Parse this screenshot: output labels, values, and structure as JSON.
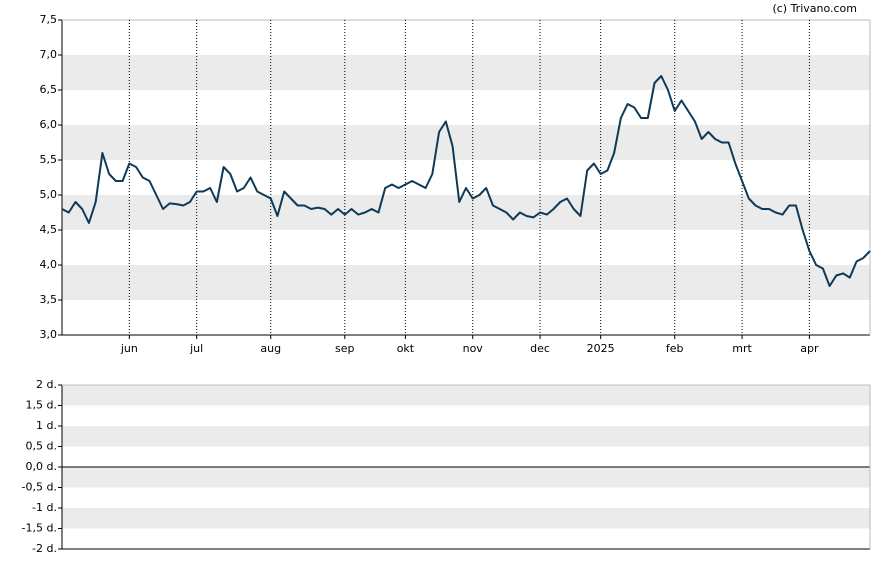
{
  "chart_data": [
    {
      "type": "line",
      "source": "(c) Trivano.com",
      "color": "#0f3a57",
      "grid": true,
      "band_color": "#ebebeb",
      "categories": [
        null,
        null,
        null,
        null,
        null,
        null,
        null,
        null,
        null,
        null,
        "jun",
        null,
        null,
        null,
        null,
        null,
        null,
        null,
        null,
        null,
        "jul",
        null,
        null,
        null,
        null,
        null,
        null,
        null,
        null,
        null,
        null,
        "aug",
        null,
        null,
        null,
        null,
        null,
        null,
        null,
        null,
        null,
        null,
        "sep",
        null,
        null,
        null,
        null,
        null,
        null,
        null,
        null,
        "okt",
        null,
        null,
        null,
        null,
        null,
        null,
        null,
        null,
        null,
        "nov",
        null,
        null,
        null,
        null,
        null,
        null,
        null,
        null,
        null,
        "dec",
        null,
        null,
        null,
        null,
        null,
        null,
        null,
        null,
        "2025",
        null,
        null,
        null,
        null,
        null,
        null,
        null,
        null,
        null,
        null,
        "feb",
        null,
        null,
        null,
        null,
        null,
        null,
        null,
        null,
        null,
        "mrt",
        null,
        null,
        null,
        null,
        null,
        null,
        null,
        null,
        null,
        "apr",
        null,
        null,
        null,
        null,
        null,
        null,
        null,
        null,
        null
      ],
      "values": [
        4.8,
        4.75,
        4.9,
        4.8,
        4.6,
        4.9,
        5.6,
        5.3,
        5.2,
        5.2,
        5.45,
        5.4,
        5.25,
        5.2,
        5.0,
        4.8,
        4.88,
        4.87,
        4.85,
        4.9,
        5.05,
        5.05,
        5.1,
        4.9,
        5.4,
        5.3,
        5.05,
        5.1,
        5.25,
        5.05,
        5.0,
        4.95,
        4.7,
        5.05,
        4.95,
        4.85,
        4.85,
        4.8,
        4.82,
        4.8,
        4.72,
        4.8,
        4.72,
        4.8,
        4.72,
        4.75,
        4.8,
        4.75,
        5.1,
        5.15,
        5.1,
        5.15,
        5.2,
        5.15,
        5.1,
        5.3,
        5.9,
        6.05,
        5.7,
        4.9,
        5.1,
        4.95,
        5.0,
        5.1,
        4.85,
        4.8,
        4.75,
        4.65,
        4.75,
        4.7,
        4.68,
        4.75,
        4.72,
        4.8,
        4.9,
        4.95,
        4.8,
        4.7,
        5.35,
        5.45,
        5.3,
        5.35,
        5.6,
        6.1,
        6.3,
        6.25,
        6.1,
        6.1,
        6.6,
        6.7,
        6.5,
        6.2,
        6.35,
        6.2,
        6.05,
        5.8,
        5.9,
        5.8,
        5.75,
        5.75,
        5.45,
        5.2,
        4.95,
        4.85,
        4.8,
        4.8,
        4.75,
        4.72,
        4.85,
        4.85,
        4.5,
        4.2,
        4.0,
        3.95,
        3.7,
        3.85,
        3.88,
        3.82,
        4.05,
        4.1,
        4.2
      ],
      "ylim": [
        3,
        7.5
      ],
      "yticks": [
        {
          "value": 3,
          "label": "3,0"
        },
        {
          "value": 3.5,
          "label": "3,5"
        },
        {
          "value": 4,
          "label": "4,0"
        },
        {
          "value": 4.5,
          "label": "4,5"
        },
        {
          "value": 5,
          "label": "5,0"
        },
        {
          "value": 5.5,
          "label": "5,5"
        },
        {
          "value": 6,
          "label": "6,0"
        },
        {
          "value": 6.5,
          "label": "6,5"
        },
        {
          "value": 7,
          "label": "7,0"
        },
        {
          "value": 7.5,
          "label": "7,5"
        }
      ]
    },
    {
      "type": "bar",
      "grid": true,
      "band_color": "#ebebeb",
      "zero_line": true,
      "ylim": [
        -2,
        2
      ],
      "yticks": [
        {
          "value": -2,
          "label": "-2 d."
        },
        {
          "value": -1.5,
          "label": "-1,5 d."
        },
        {
          "value": -1,
          "label": "-1 d."
        },
        {
          "value": -0.5,
          "label": "-0,5 d."
        },
        {
          "value": 0,
          "label": "0,0 d."
        },
        {
          "value": 0.5,
          "label": "0,5 d."
        },
        {
          "value": 1,
          "label": "1 d."
        },
        {
          "value": 1.5,
          "label": "1,5 d."
        },
        {
          "value": 2,
          "label": "2 d."
        }
      ]
    }
  ]
}
